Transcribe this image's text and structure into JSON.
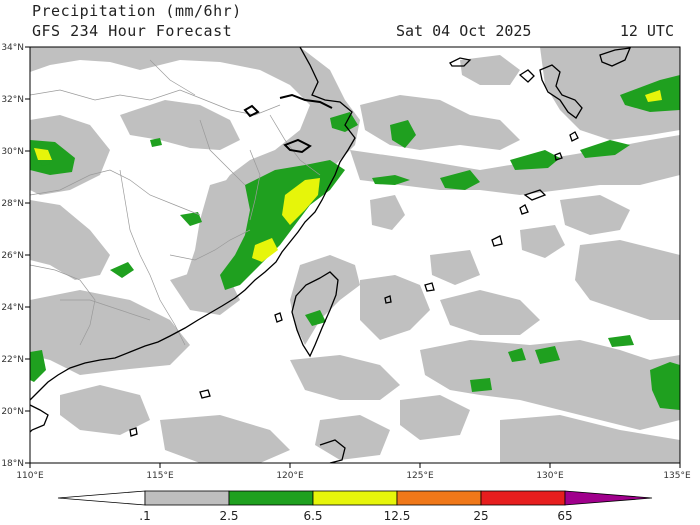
{
  "header": {
    "title": "Precipitation (mm/6hr)",
    "subtitle": "GFS 234 Hour Forecast",
    "valid_date": "Sat 04 Oct 2025",
    "valid_time": "12 UTC"
  },
  "map": {
    "lon_range": [
      110,
      135
    ],
    "lat_range": [
      18,
      34
    ],
    "lon_ticks": [
      "110°E",
      "115°E",
      "120°E",
      "125°E",
      "130°E",
      "135°E"
    ],
    "lat_ticks": [
      "18°N",
      "20°N",
      "22°N",
      "24°N",
      "26°N",
      "28°N",
      "30°N",
      "32°N",
      "34°N"
    ]
  },
  "colorbar": {
    "labels": [
      ".1",
      "2.5",
      "6.5",
      "12.5",
      "25",
      "65"
    ],
    "colors": [
      "#ffffff",
      "#bebebe",
      "#1fa01f",
      "#e6f50a",
      "#f07819",
      "#e61e1e",
      "#a0008c"
    ]
  }
}
